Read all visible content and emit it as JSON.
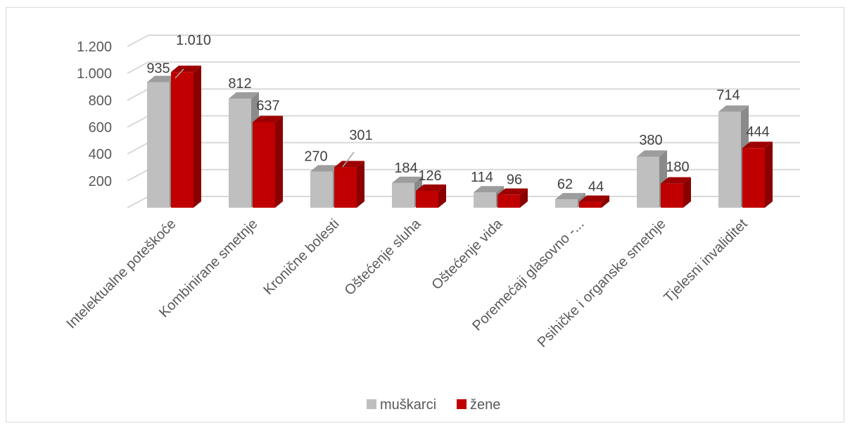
{
  "chart_data": {
    "type": "bar",
    "categories": [
      "Intelektualne poteškoće",
      "Kombinirane smetnje",
      "Kronične bolesti",
      "Oštećenje sluha",
      "Oštećenje vida",
      "Poremećaji glasovno -...",
      "Psihičke i organske smetnje",
      "Tjelesni invaliditet"
    ],
    "series": [
      {
        "name": "muškarci",
        "values": [
          935,
          812,
          270,
          184,
          114,
          62,
          380,
          714
        ],
        "labels": [
          "935",
          "812",
          "270",
          "184",
          "114",
          "62",
          "380",
          "714"
        ],
        "color": "#bfbfbf"
      },
      {
        "name": "žene",
        "values": [
          1010,
          637,
          301,
          126,
          96,
          44,
          180,
          444
        ],
        "labels": [
          "1.010",
          "637",
          "301",
          "126",
          "96",
          "44",
          "180",
          "444"
        ],
        "color": "#c00000"
      }
    ],
    "y_ticks": [
      {
        "value": 200,
        "label": "200"
      },
      {
        "value": 400,
        "label": "400"
      },
      {
        "value": 600,
        "label": "600"
      },
      {
        "value": 800,
        "label": "800"
      },
      {
        "value": 1000,
        "label": "1.000"
      },
      {
        "value": 1200,
        "label": "1.200"
      }
    ],
    "ylim": [
      0,
      1200
    ],
    "grid": true,
    "legend": "bottom",
    "style": "3d-clustered-column"
  }
}
